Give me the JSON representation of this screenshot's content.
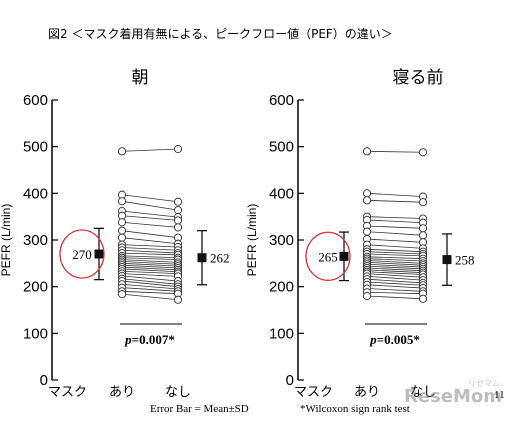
{
  "figure": {
    "title": "図2 ＜マスク着用有無による、ピークフロー値（PEF）の違い＞",
    "footnote_left": "Error Bar = Mean±SD",
    "footnote_right": "*Wilcoxon sign rank test",
    "watermark": "ReseMom",
    "watermark_small": "リセマム",
    "page_number": "11"
  },
  "chart_data": [
    {
      "type": "line",
      "title": "朝",
      "ylabel": "PEFR (L/min)",
      "ylim": [
        0,
        600
      ],
      "yticks": [
        0,
        100,
        200,
        300,
        400,
        500,
        600
      ],
      "category_axis_label": "マスク",
      "categories": [
        "あり",
        "なし"
      ],
      "pairs": [
        [
          490,
          495
        ],
        [
          397,
          382
        ],
        [
          383,
          364
        ],
        [
          362,
          349
        ],
        [
          352,
          342
        ],
        [
          338,
          327
        ],
        [
          320,
          305
        ],
        [
          305,
          292
        ],
        [
          290,
          285
        ],
        [
          284,
          278
        ],
        [
          278,
          272
        ],
        [
          272,
          268
        ],
        [
          266,
          262
        ],
        [
          262,
          258
        ],
        [
          258,
          252
        ],
        [
          254,
          248
        ],
        [
          250,
          244
        ],
        [
          246,
          240
        ],
        [
          242,
          236
        ],
        [
          238,
          232
        ],
        [
          233,
          228
        ],
        [
          228,
          222
        ],
        [
          223,
          212
        ],
        [
          217,
          205
        ],
        [
          212,
          200
        ],
        [
          205,
          195
        ],
        [
          198,
          190
        ],
        [
          190,
          185
        ],
        [
          184,
          172
        ]
      ],
      "mean_left": 270,
      "sd_left": 55,
      "mean_right": 262,
      "sd_right": 58,
      "mean_label": "270",
      "mean_label_right": "262",
      "p_label": "=0.007*"
    },
    {
      "type": "line",
      "title": "寝る前",
      "ylabel": "PEFR (L/min)",
      "ylim": [
        0,
        600
      ],
      "yticks": [
        0,
        100,
        200,
        300,
        400,
        500,
        600
      ],
      "category_axis_label": "マスク",
      "categories": [
        "あり",
        "なし"
      ],
      "pairs": [
        [
          490,
          488
        ],
        [
          400,
          393
        ],
        [
          385,
          381
        ],
        [
          350,
          346
        ],
        [
          343,
          337
        ],
        [
          330,
          325
        ],
        [
          318,
          310
        ],
        [
          302,
          295
        ],
        [
          290,
          282
        ],
        [
          280,
          275
        ],
        [
          275,
          270
        ],
        [
          270,
          266
        ],
        [
          264,
          260
        ],
        [
          260,
          255
        ],
        [
          256,
          250
        ],
        [
          252,
          246
        ],
        [
          248,
          242
        ],
        [
          244,
          238
        ],
        [
          240,
          234
        ],
        [
          236,
          230
        ],
        [
          232,
          226
        ],
        [
          228,
          220
        ],
        [
          222,
          214
        ],
        [
          216,
          208
        ],
        [
          210,
          203
        ],
        [
          204,
          197
        ],
        [
          196,
          190
        ],
        [
          188,
          185
        ],
        [
          180,
          174
        ]
      ],
      "mean_left": 265,
      "sd_left": 52,
      "mean_right": 258,
      "sd_right": 55,
      "mean_label": "265",
      "mean_label_right": "258",
      "p_label": "=0.005*"
    }
  ]
}
